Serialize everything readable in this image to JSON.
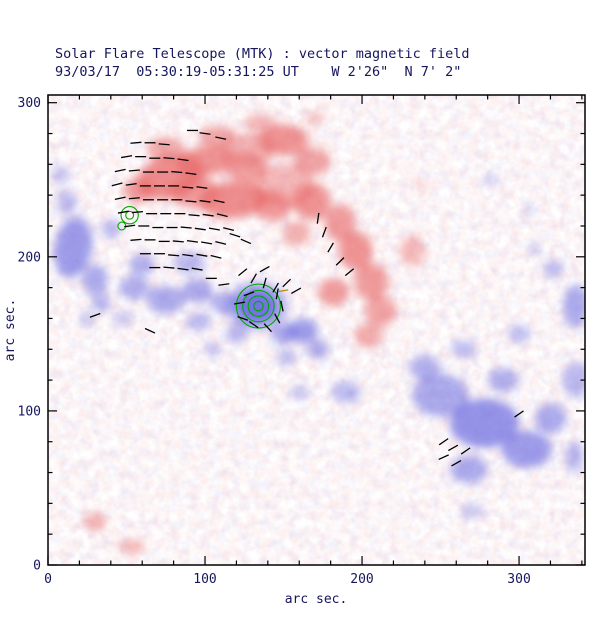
{
  "chart_data": {
    "type": "heatmap",
    "title": "Solar Flare Telescope (MTK) : vector magnetic field",
    "subtitle": "93/03/17  05:30:19-05:31:25 UT    W 2'26\"  N 7' 2\"",
    "xlabel": "arc sec.",
    "ylabel": "arc sec.",
    "xlim": [
      0,
      342
    ],
    "ylim": [
      0,
      305
    ],
    "x_ticks": [
      0,
      100,
      200,
      300
    ],
    "y_ticks": [
      0,
      100,
      200,
      300
    ],
    "minor_tick_step": 20,
    "grid": false,
    "colors": {
      "red_polarity": "#e86a6a",
      "blue_polarity": "#6a6ae0",
      "contour": "#00a800",
      "vector": "#000000",
      "special_vector": "#b09000",
      "frame": "#000000",
      "text": "#16165e",
      "background": "#ffffff"
    },
    "red_blobs": [
      [
        78,
        252,
        22,
        14,
        -15,
        0.75
      ],
      [
        58,
        243,
        10,
        8,
        0,
        0.65
      ],
      [
        100,
        262,
        18,
        10,
        -10,
        0.7
      ],
      [
        126,
        258,
        14,
        9,
        0,
        0.65
      ],
      [
        150,
        276,
        16,
        10,
        0,
        0.7
      ],
      [
        168,
        262,
        12,
        9,
        0,
        0.6
      ],
      [
        118,
        237,
        22,
        12,
        -5,
        0.75
      ],
      [
        143,
        233,
        12,
        10,
        0,
        0.65
      ],
      [
        168,
        236,
        12,
        12,
        0,
        0.7
      ],
      [
        186,
        222,
        10,
        12,
        0,
        0.65
      ],
      [
        196,
        204,
        11,
        12,
        0,
        0.7
      ],
      [
        206,
        184,
        11,
        12,
        0,
        0.65
      ],
      [
        212,
        165,
        10,
        10,
        0,
        0.6
      ],
      [
        204,
        149,
        9,
        8,
        0,
        0.55
      ],
      [
        182,
        177,
        10,
        9,
        0,
        0.65
      ],
      [
        158,
        215,
        9,
        8,
        0,
        0.5
      ],
      [
        93,
        242,
        16,
        10,
        0,
        0.65
      ],
      [
        75,
        270,
        12,
        8,
        0,
        0.55
      ],
      [
        108,
        278,
        12,
        7,
        0,
        0.55
      ],
      [
        135,
        287,
        10,
        6,
        0,
        0.45
      ],
      [
        30,
        28,
        7,
        6,
        0,
        0.5
      ],
      [
        53,
        12,
        8,
        5,
        0,
        0.45
      ],
      [
        150,
        246,
        20,
        14,
        0,
        0.45
      ],
      [
        128,
        270,
        18,
        10,
        0,
        0.5
      ],
      [
        232,
        204,
        8,
        10,
        0,
        0.45
      ],
      [
        237,
        247,
        4,
        3,
        0,
        0.35
      ],
      [
        170,
        290,
        6,
        5,
        0,
        0.35
      ]
    ],
    "blue_blobs": [
      [
        16,
        206,
        12,
        20,
        10,
        0.65
      ],
      [
        30,
        185,
        8,
        10,
        0,
        0.55
      ],
      [
        34,
        170,
        6,
        6,
        0,
        0.45
      ],
      [
        55,
        180,
        10,
        8,
        0,
        0.5
      ],
      [
        75,
        172,
        12,
        9,
        0,
        0.55
      ],
      [
        95,
        178,
        10,
        8,
        0,
        0.55
      ],
      [
        112,
        170,
        9,
        7,
        0,
        0.5
      ],
      [
        90,
        196,
        10,
        7,
        0,
        0.45
      ],
      [
        133,
        168,
        13,
        11,
        0,
        0.9
      ],
      [
        133,
        168,
        20,
        16,
        0,
        0.45
      ],
      [
        150,
        150,
        8,
        7,
        0,
        0.55
      ],
      [
        162,
        152,
        10,
        8,
        0,
        0.65
      ],
      [
        172,
        140,
        7,
        6,
        0,
        0.55
      ],
      [
        152,
        135,
        6,
        5,
        0,
        0.45
      ],
      [
        190,
        112,
        9,
        7,
        0,
        0.45
      ],
      [
        160,
        112,
        6,
        5,
        0,
        0.35
      ],
      [
        250,
        110,
        18,
        14,
        0,
        0.55
      ],
      [
        278,
        92,
        22,
        16,
        0,
        0.7
      ],
      [
        305,
        75,
        16,
        12,
        0,
        0.65
      ],
      [
        268,
        62,
        12,
        9,
        0,
        0.55
      ],
      [
        240,
        128,
        10,
        8,
        0,
        0.5
      ],
      [
        290,
        120,
        10,
        8,
        0,
        0.5
      ],
      [
        320,
        95,
        10,
        10,
        0,
        0.55
      ],
      [
        336,
        120,
        8,
        12,
        0,
        0.45
      ],
      [
        336,
        168,
        8,
        14,
        0,
        0.55
      ],
      [
        322,
        192,
        6,
        6,
        0,
        0.45
      ],
      [
        310,
        205,
        4,
        4,
        0,
        0.35
      ],
      [
        300,
        150,
        7,
        6,
        0,
        0.4
      ],
      [
        265,
        140,
        8,
        6,
        0,
        0.4
      ],
      [
        120,
        150,
        7,
        6,
        0,
        0.45
      ],
      [
        105,
        140,
        6,
        5,
        0,
        0.35
      ],
      [
        48,
        160,
        6,
        5,
        0,
        0.35
      ],
      [
        12,
        235,
        6,
        8,
        0,
        0.45
      ],
      [
        8,
        253,
        5,
        7,
        0,
        0.35
      ],
      [
        282,
        250,
        5,
        4,
        0,
        0.3
      ],
      [
        307,
        230,
        4,
        4,
        0,
        0.25
      ],
      [
        270,
        35,
        7,
        5,
        0,
        0.35
      ],
      [
        96,
        158,
        8,
        6,
        0,
        0.45
      ],
      [
        60,
        195,
        8,
        7,
        0,
        0.5
      ],
      [
        40,
        218,
        6,
        6,
        0,
        0.45
      ],
      [
        335,
        70,
        6,
        10,
        0,
        0.45
      ],
      [
        25,
        160,
        5,
        5,
        0,
        0.35
      ]
    ],
    "contour_sets": [
      {
        "x": 134,
        "y": 168,
        "radii": [
          3,
          6.5,
          10,
          14
        ]
      },
      {
        "x": 52,
        "y": 227,
        "radii": [
          2.5,
          5.5
        ]
      },
      {
        "x": 47,
        "y": 220,
        "radii": [
          2.5
        ]
      }
    ],
    "vectors": [
      [
        56,
        274,
        5
      ],
      [
        65,
        274,
        0
      ],
      [
        74,
        273,
        -5
      ],
      [
        50,
        265,
        10
      ],
      [
        59,
        265,
        0
      ],
      [
        68,
        264,
        0
      ],
      [
        77,
        264,
        -5
      ],
      [
        86,
        263,
        -8
      ],
      [
        46,
        256,
        12
      ],
      [
        55,
        256,
        5
      ],
      [
        64,
        255,
        0
      ],
      [
        73,
        255,
        0
      ],
      [
        82,
        255,
        -5
      ],
      [
        91,
        254,
        -8
      ],
      [
        44,
        247,
        15
      ],
      [
        53,
        247,
        8
      ],
      [
        62,
        246,
        0
      ],
      [
        71,
        246,
        0
      ],
      [
        80,
        246,
        0
      ],
      [
        89,
        245,
        -5
      ],
      [
        98,
        245,
        -8
      ],
      [
        46,
        238,
        12
      ],
      [
        55,
        238,
        5
      ],
      [
        64,
        237,
        0
      ],
      [
        73,
        237,
        0
      ],
      [
        82,
        237,
        0
      ],
      [
        91,
        236,
        -5
      ],
      [
        100,
        236,
        -8
      ],
      [
        109,
        236,
        -12
      ],
      [
        48,
        229,
        10
      ],
      [
        57,
        229,
        5
      ],
      [
        66,
        228,
        0
      ],
      [
        75,
        228,
        0
      ],
      [
        84,
        228,
        0
      ],
      [
        93,
        227,
        -5
      ],
      [
        102,
        227,
        -8
      ],
      [
        111,
        227,
        -14
      ],
      [
        52,
        220,
        8
      ],
      [
        61,
        220,
        0
      ],
      [
        70,
        219,
        0
      ],
      [
        79,
        219,
        0
      ],
      [
        88,
        219,
        -5
      ],
      [
        97,
        218,
        -8
      ],
      [
        106,
        218,
        -10
      ],
      [
        115,
        218,
        -14
      ],
      [
        56,
        211,
        5
      ],
      [
        65,
        211,
        0
      ],
      [
        74,
        210,
        0
      ],
      [
        83,
        210,
        -5
      ],
      [
        92,
        210,
        -8
      ],
      [
        101,
        209,
        -10
      ],
      [
        110,
        209,
        -14
      ],
      [
        62,
        202,
        0
      ],
      [
        71,
        202,
        0
      ],
      [
        80,
        201,
        -5
      ],
      [
        89,
        201,
        -8
      ],
      [
        98,
        201,
        -10
      ],
      [
        107,
        200,
        -14
      ],
      [
        68,
        193,
        0
      ],
      [
        77,
        193,
        -5
      ],
      [
        86,
        192,
        -8
      ],
      [
        95,
        192,
        -10
      ],
      [
        119,
        214,
        -18
      ],
      [
        126,
        210,
        -24
      ],
      [
        92,
        282,
        0
      ],
      [
        100,
        280,
        -8
      ],
      [
        110,
        277,
        -12
      ],
      [
        124,
        190,
        40
      ],
      [
        131,
        186,
        60
      ],
      [
        138,
        183,
        75
      ],
      [
        145,
        180,
        60
      ],
      [
        128,
        176,
        20
      ],
      [
        122,
        170,
        10
      ],
      [
        124,
        160,
        -20
      ],
      [
        131,
        156,
        -35
      ],
      [
        140,
        154,
        -48
      ],
      [
        146,
        160,
        -62
      ],
      [
        149,
        168,
        -78
      ],
      [
        146,
        176,
        80
      ],
      [
        138,
        192,
        30
      ],
      [
        152,
        183,
        45
      ],
      [
        158,
        178,
        30
      ],
      [
        112,
        182,
        8
      ],
      [
        104,
        186,
        0
      ],
      [
        172,
        225,
        82
      ],
      [
        176,
        216,
        70
      ],
      [
        180,
        206,
        60
      ],
      [
        186,
        197,
        45
      ],
      [
        192,
        190,
        40
      ],
      [
        252,
        80,
        35
      ],
      [
        258,
        76,
        30
      ],
      [
        252,
        70,
        25
      ],
      [
        260,
        66,
        30
      ],
      [
        266,
        74,
        35
      ],
      [
        30,
        162,
        20
      ],
      [
        65,
        152,
        -25
      ],
      [
        300,
        98,
        35
      ]
    ],
    "special_vectors": [
      [
        150,
        178,
        10,
        6
      ]
    ]
  }
}
